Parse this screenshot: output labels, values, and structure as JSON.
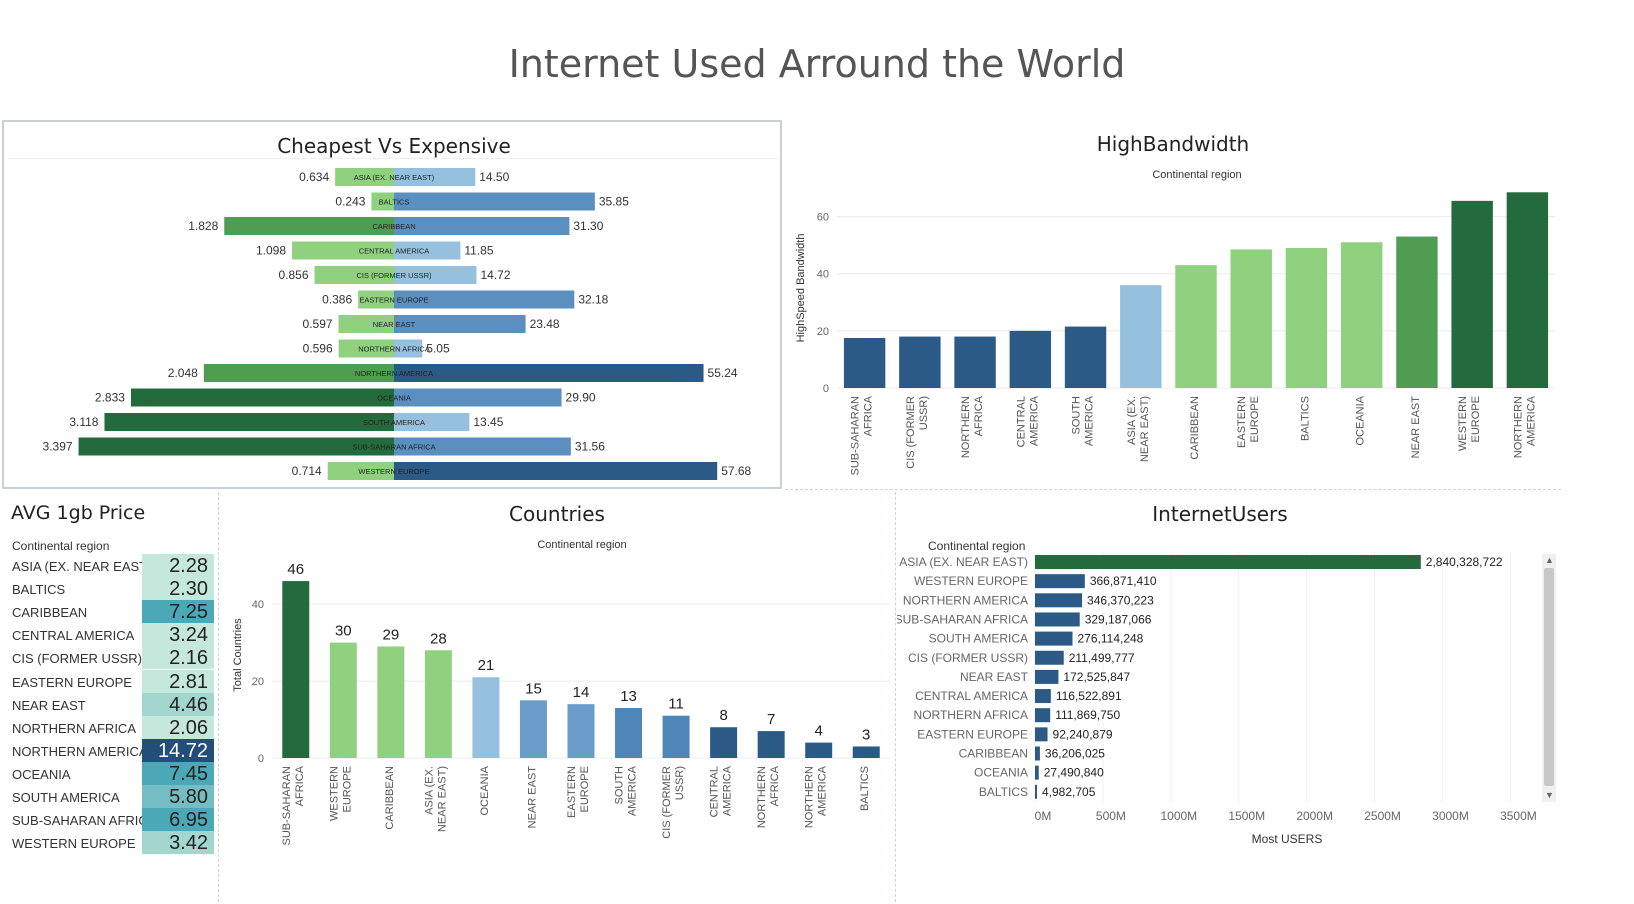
{
  "dashboard_title": "Internet Used Arround the World",
  "colors": {
    "dark_green": "#236b3c",
    "mid_green": "#4f9d52",
    "light_green": "#8fd17e",
    "light_blue": "#95c0de",
    "mid_blue": "#5b8fc0",
    "dark_blue": "#2b5a86"
  },
  "chart_data": [
    {
      "type": "bar",
      "title": "Cheapest Vs Expensive",
      "categories": [
        "ASIA (EX. NEAR EAST)",
        "BALTICS",
        "CARIBBEAN",
        "CENTRAL AMERICA",
        "CIS (FORMER USSR)",
        "EASTERN EUROPE",
        "NEAR EAST",
        "NORTHERN AFRICA",
        "NORTHERN AMERICA",
        "OCEANIA",
        "SOUTH AMERICA",
        "SUB-SAHARAN AFRICA",
        "WESTERN EUROPE"
      ],
      "series": [
        {
          "values": [
            0.634,
            0.243,
            1.828,
            1.098,
            0.856,
            0.386,
            0.597,
            0.596,
            2.048,
            2.833,
            3.118,
            3.397,
            0.714
          ]
        },
        {
          "values": [
            14.5,
            35.85,
            31.3,
            11.85,
            14.72,
            32.18,
            23.48,
            5.05,
            55.24,
            29.9,
            13.45,
            31.56,
            57.68
          ]
        }
      ],
      "left_labels": [
        "0.634",
        "0.243",
        "1.828",
        "1.098",
        "0.856",
        "0.386",
        "0.597",
        "0.596",
        "2.048",
        "2.833",
        "3.118",
        "3.397",
        "0.714"
      ],
      "right_labels": [
        "14.50",
        "35.85",
        "31.30",
        "11.85",
        "14.72",
        "32.18",
        "23.48",
        "5.05",
        "55.24",
        "29.90",
        "13.45",
        "31.56",
        "57.68"
      ]
    },
    {
      "type": "bar",
      "title": "HighBandwidth",
      "subtitle": "Continental region",
      "ylabel": "HighSpeed Bandwidth",
      "ylim": [
        0,
        70
      ],
      "yticks": [
        "0",
        "20",
        "40",
        "60"
      ],
      "categories": [
        "SUB-SAHARAN AFRICA",
        "CIS (FORMER USSR)",
        "NORTHERN AFRICA",
        "CENTRAL AMERICA",
        "SOUTH AMERICA",
        "ASIA (EX. NEAR EAST)",
        "CARIBBEAN",
        "EASTERN EUROPE",
        "BALTICS",
        "OCEANIA",
        "NEAR EAST",
        "WESTERN EUROPE",
        "NORTHERN AMERICA"
      ],
      "values": [
        17.5,
        18,
        18,
        20,
        21.5,
        36,
        43,
        48.5,
        49,
        51,
        53,
        65.5,
        68.5
      ]
    },
    {
      "type": "heatmap",
      "title": "AVG 1gb Price",
      "header": "Continental region",
      "categories": [
        "ASIA (EX. NEAR EAST)",
        "BALTICS",
        "CARIBBEAN",
        "CENTRAL AMERICA",
        "CIS (FORMER USSR)",
        "EASTERN EUROPE",
        "NEAR EAST",
        "NORTHERN AFRICA",
        "NORTHERN AMERICA",
        "OCEANIA",
        "SOUTH AMERICA",
        "SUB-SAHARAN AFRICA",
        "WESTERN EUROPE"
      ],
      "values": [
        2.28,
        2.3,
        7.25,
        3.24,
        2.16,
        2.81,
        4.46,
        2.06,
        14.72,
        7.45,
        5.8,
        6.95,
        3.42
      ],
      "labels": [
        "2.28",
        "2.30",
        "7.25",
        "3.24",
        "2.16",
        "2.81",
        "4.46",
        "2.06",
        "14.72",
        "7.45",
        "5.80",
        "6.95",
        "3.42"
      ]
    },
    {
      "type": "bar",
      "title": "Countries",
      "subtitle": "Continental region",
      "ylabel": "Total Countries",
      "ylim": [
        0,
        50
      ],
      "yticks": [
        "0",
        "20",
        "40"
      ],
      "categories": [
        "SUB-SAHARAN AFRICA",
        "WESTERN EUROPE",
        "CARIBBEAN",
        "ASIA (EX. NEAR EAST)",
        "OCEANIA",
        "NEAR EAST",
        "EASTERN EUROPE",
        "SOUTH AMERICA",
        "CIS (FORMER USSR)",
        "CENTRAL AMERICA",
        "NORTHERN AFRICA",
        "NORTHERN AMERICA",
        "BALTICS"
      ],
      "values": [
        46,
        30,
        29,
        28,
        21,
        15,
        14,
        13,
        11,
        8,
        7,
        4,
        3
      ]
    },
    {
      "type": "bar",
      "title": "InternetUsers",
      "header": "Continental region",
      "xlabel": "Most USERS",
      "xlim": [
        0,
        3600000000
      ],
      "xticks": [
        "0M",
        "500M",
        "1000M",
        "1500M",
        "2000M",
        "2500M",
        "3000M",
        "3500M"
      ],
      "categories": [
        "ASIA (EX. NEAR EAST)",
        "WESTERN EUROPE",
        "NORTHERN AMERICA",
        "SUB-SAHARAN AFRICA",
        "SOUTH AMERICA",
        "CIS (FORMER USSR)",
        "NEAR EAST",
        "CENTRAL AMERICA",
        "NORTHERN AFRICA",
        "EASTERN EUROPE",
        "CARIBBEAN",
        "OCEANIA",
        "BALTICS"
      ],
      "values": [
        2840328722,
        366871410,
        346370223,
        329187066,
        276114248,
        211499777,
        172525847,
        116522891,
        111869750,
        92240879,
        36206025,
        27490840,
        4982705
      ],
      "labels": [
        "2,840,328,722",
        "366,871,410",
        "346,370,223",
        "329,187,066",
        "276,114,248",
        "211,499,777",
        "172,525,847",
        "116,522,891",
        "111,869,750",
        "92,240,879",
        "36,206,025",
        "27,490,840",
        "4,982,705"
      ]
    }
  ]
}
